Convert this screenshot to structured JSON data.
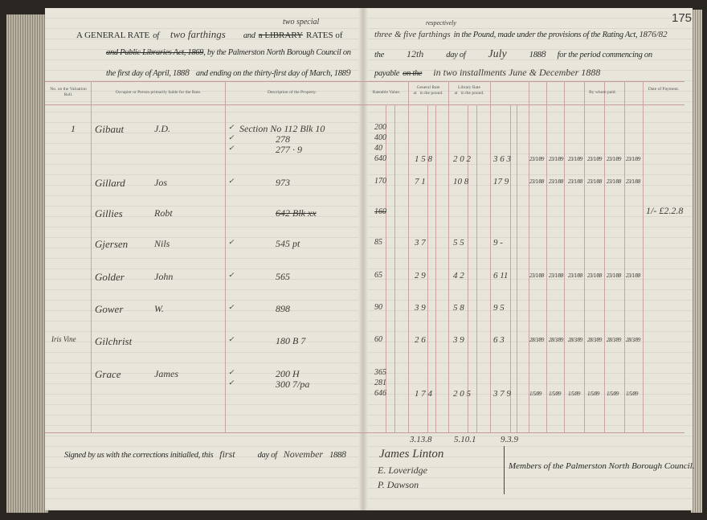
{
  "header": {
    "left_line1": {
      "prefix": "A GENERAL RATE",
      "of": "of",
      "rate_handwritten": "two farthings",
      "and": "and",
      "struck": "a LIBRARY",
      "insert": "two special",
      "rates": "RATES of"
    },
    "left_line2": {
      "struck": "and Public Libraries Act, 1869",
      "text": ", by the Palmerston North Borough Council on"
    },
    "left_line3": {
      "text1": "the first day of April, 188",
      "y1": "8",
      "text2": "and ending on the thirty-first day of March, 188",
      "y2": "9"
    },
    "right_line1": {
      "handwritten": "three & five farthings",
      "insert": "respectively",
      "text": "in the Pound, made under the provisions of the Rating Act, 18",
      "act_year": "76/82",
      "page_number": "175"
    },
    "right_line2": {
      "the": "the",
      "day_hw": "12th",
      "day_of": "day of",
      "month_hw": "July",
      "year": "188",
      "year_hw": "8",
      "text": "for the period commencing on"
    },
    "right_line3": {
      "payable": "payable",
      "struck": "on the",
      "handwritten": "in two installments June & December 1888"
    }
  },
  "columns": {
    "no": "No. on the Valuation Roll.",
    "occupier": "Occupier or Person primarily liable for the Rate.",
    "description": "Description of the Property.",
    "rateable": "Rateable Value.",
    "general": "General Rate",
    "library": "Library Rate",
    "at": "at",
    "in_pound": "in the pound.",
    "by_whom": "By whom paid.",
    "date": "Date of Payment."
  },
  "rows": [
    {
      "no": "1",
      "surname": "Gibaut",
      "given": "J.D.",
      "desc": [
        "Section No 112 Blk 10",
        "278",
        "277 · 9"
      ],
      "ticks": 3,
      "rv": [
        "200",
        "400",
        "40",
        "640"
      ],
      "gen": "1 5 8",
      "lib": "2 0 2",
      "total": "3 6 3",
      "dates": [
        "23/1/89",
        "23/1/89",
        "23/1/89",
        "23/1/89",
        "23/1/89",
        "23/1/89"
      ]
    },
    {
      "no": "",
      "surname": "Gillard",
      "given": "Jos",
      "desc": [
        "973"
      ],
      "ticks": 1,
      "rv": [
        "170"
      ],
      "gen": "7 1",
      "lib": "10 8",
      "total": "17 9",
      "dates": [
        "23/1/88",
        "23/1/88",
        "23/1/88",
        "23/1/88",
        "23/1/88",
        "23/1/88"
      ]
    },
    {
      "no": "",
      "surname": "Gillies",
      "given": "Robt",
      "desc": [
        "642 Blk xx"
      ],
      "ticks": 0,
      "rv": [
        "160"
      ],
      "gen": "",
      "lib": "",
      "total": "",
      "dates": [],
      "note": "1/- £2.2.8"
    },
    {
      "no": "",
      "surname": "Gjersen",
      "given": "Nils",
      "desc": [
        "545 pt"
      ],
      "ticks": 1,
      "rv": [
        "85"
      ],
      "gen": "3 7",
      "lib": "5 5",
      "total": "9 -",
      "dates": []
    },
    {
      "no": "",
      "surname": "Golder",
      "given": "John",
      "desc": [
        "565"
      ],
      "ticks": 1,
      "rv": [
        "65"
      ],
      "gen": "2 9",
      "lib": "4 2",
      "total": "6 11",
      "dates": [
        "23/1/88",
        "23/1/88",
        "23/1/88",
        "23/1/88",
        "23/1/88",
        "23/1/88"
      ]
    },
    {
      "no": "",
      "surname": "Gower",
      "given": "W.",
      "desc": [
        "898"
      ],
      "ticks": 1,
      "rv": [
        "90"
      ],
      "gen": "3 9",
      "lib": "5 8",
      "total": "9 5",
      "dates": []
    },
    {
      "no": "Iris Vine",
      "surname": "Gilchrist",
      "given": "",
      "desc": [
        "180 B 7"
      ],
      "ticks": 1,
      "rv": [
        "60"
      ],
      "gen": "2 6",
      "lib": "3 9",
      "total": "6 3",
      "dates": [
        "28/3/89",
        "28/3/89",
        "28/3/89",
        "28/3/89",
        "28/3/89",
        "28/3/89"
      ]
    },
    {
      "no": "",
      "surname": "Grace",
      "given": "James",
      "desc": [
        "200 H",
        "300 7/pa"
      ],
      "ticks": 2,
      "rv": [
        "365",
        "281",
        "646"
      ],
      "gen": "1 7 4",
      "lib": "2 0 5",
      "total": "3 7 9",
      "dates": [
        "1/5/89",
        "1/5/89",
        "1/5/89",
        "1/5/89",
        "1/5/89",
        "1/5/89"
      ]
    }
  ],
  "footer": {
    "signed": "Signed by us with the corrections initialled, this",
    "day_hw": "first",
    "day_of": "day of",
    "month_hw": "November",
    "year": "188",
    "year_hw": "8",
    "totals": [
      "3.13.8",
      "5.10.1",
      "9.3.9"
    ],
    "signatures": [
      "James Linton",
      "E. Loveridge",
      "P. Dawson"
    ],
    "members": "Members of the Palmerston North Borough Council."
  }
}
